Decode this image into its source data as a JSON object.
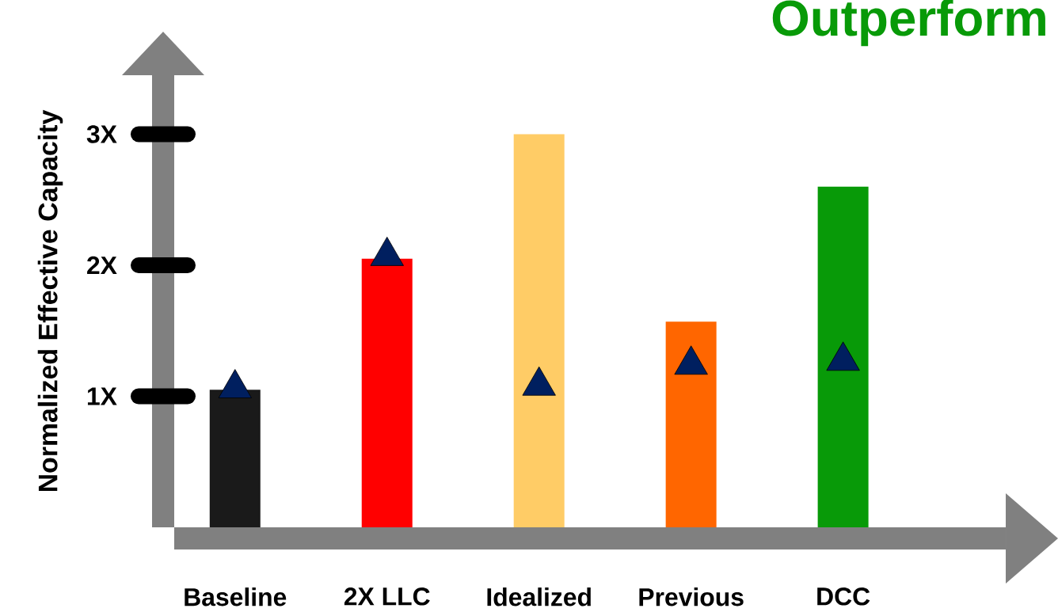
{
  "chart_data": {
    "type": "bar",
    "title": "Outperform",
    "ylabel": "Normalized Effective Capacity",
    "categories": [
      "Baseline",
      "2X LLC",
      "Idealized",
      "Previous",
      "DCC"
    ],
    "series": [
      {
        "colors": [
          "#1a1a1a",
          "#ff0000",
          "#ffcc66",
          "#ff6600",
          "#089a08"
        ],
        "values": [
          1.05,
          2.05,
          3.0,
          1.57,
          2.6
        ]
      },
      {
        "type": "scatter",
        "marker": "triangle",
        "color": "#001f5f",
        "values": [
          1.06,
          2.07,
          1.08,
          1.24,
          1.27
        ]
      }
    ],
    "ylim": [
      0,
      3.45
    ],
    "yticks": [
      {
        "value": 1,
        "label": "1X"
      },
      {
        "value": 2,
        "label": "2X"
      },
      {
        "value": 3,
        "label": "3X"
      }
    ]
  }
}
